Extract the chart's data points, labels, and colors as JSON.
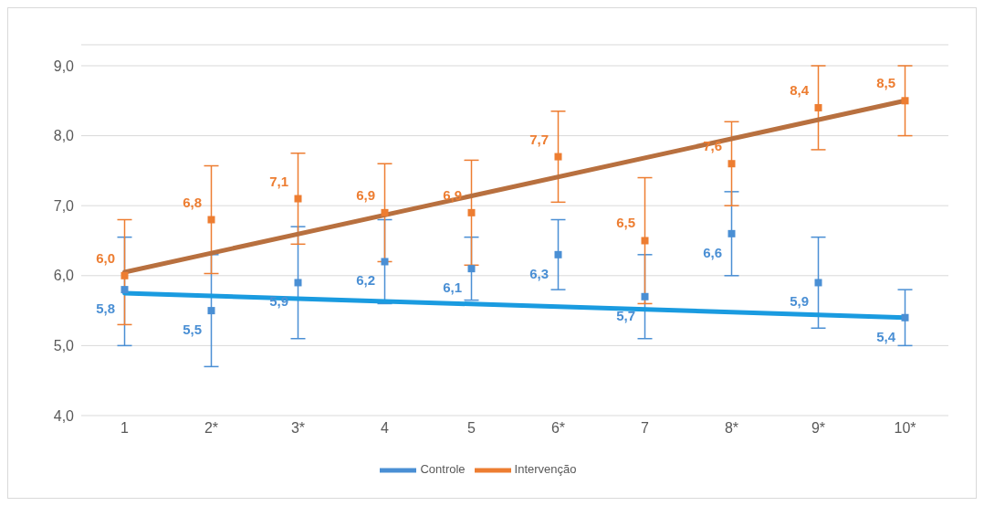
{
  "chart_data": {
    "type": "scatter",
    "categories": [
      "1",
      "2*",
      "3*",
      "4",
      "5",
      "6*",
      "7",
      "8*",
      "9*",
      "10*"
    ],
    "series": [
      {
        "name": "Controle",
        "color": "#4a8fd4",
        "values": [
          5.8,
          5.5,
          5.9,
          6.2,
          6.1,
          6.3,
          5.7,
          6.6,
          5.9,
          5.4
        ],
        "errors": [
          [
            5.0,
            6.55
          ],
          0.8,
          0.8,
          0.6,
          0.45,
          0.5,
          0.6,
          0.6,
          0.65,
          0.4
        ],
        "value_labels": [
          "5,8",
          "5,5",
          "5,9",
          "6,2",
          "6,1",
          "6,3",
          "5,7",
          "6,6",
          "5,9",
          "5,4"
        ],
        "marker": "square"
      },
      {
        "name": "Intervenção",
        "color": "#ed7d31",
        "values": [
          6.0,
          6.8,
          7.1,
          6.9,
          6.9,
          7.7,
          6.5,
          7.6,
          8.4,
          8.5
        ],
        "errors": [
          [
            5.3,
            6.8
          ],
          0.77,
          0.65,
          0.7,
          0.75,
          0.65,
          0.9,
          0.6,
          0.6,
          0.5
        ],
        "value_labels": [
          "6,0",
          "6,8",
          "7,1",
          "6,9",
          "6,9",
          "7,7",
          "6,5",
          "7,6",
          "8,4",
          "8,5"
        ],
        "marker": "square"
      },
      {
        "type": "line",
        "color": "#1a9be0",
        "x": [
          "1",
          "10*"
        ],
        "values": [
          5.75,
          5.4
        ]
      },
      {
        "type": "line",
        "color": "#b8703f",
        "x": [
          "1",
          "10*"
        ],
        "values": [
          6.05,
          8.5
        ]
      }
    ],
    "ylim": [
      4,
      9.3
    ],
    "yticks": [
      {
        "value": 4,
        "label": "4,0"
      },
      {
        "value": 5,
        "label": "5,0"
      },
      {
        "value": 6,
        "label": "6,0"
      },
      {
        "value": 7,
        "label": "7,0"
      },
      {
        "value": 8,
        "label": "8,0"
      },
      {
        "value": 9,
        "label": "9,0"
      }
    ],
    "grid": "y",
    "legend": "bottom"
  }
}
